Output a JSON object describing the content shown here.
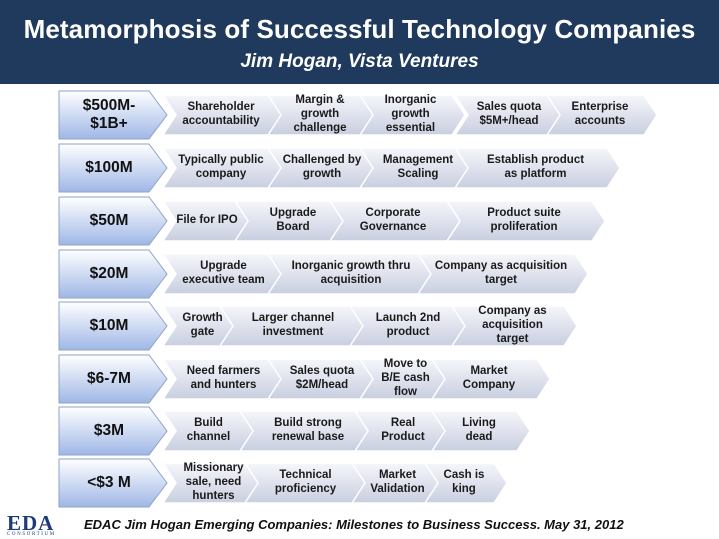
{
  "header": {
    "title": "Metamorphosis of Successful Technology Companies",
    "subtitle": "Jim Hogan, Vista Ventures"
  },
  "colors": {
    "header_bg": "#1f3a5c",
    "stage_gradient": [
      "#ffffff",
      "#9fb7e6"
    ],
    "chevron_gradient": [
      "#f6f7fb",
      "#c9cfe0"
    ]
  },
  "rows": [
    {
      "stage": "$500M-\n$1B+",
      "steps": [
        "Shareholder\naccountability",
        "Margin &\ngrowth\nchallenge",
        "Inorganic\ngrowth\nessential",
        "Sales quota\n$5M+/head",
        "Enterprise\naccounts"
      ]
    },
    {
      "stage": "$100M",
      "steps": [
        "Typically public\ncompany",
        "Challenged by\ngrowth",
        "Management\nScaling",
        "Establish product\nas platform"
      ]
    },
    {
      "stage": "$50M",
      "steps": [
        "File for IPO",
        "Upgrade\nBoard",
        "Corporate\nGovernance",
        "Product suite\nproliferation"
      ]
    },
    {
      "stage": "$20M",
      "steps": [
        "Upgrade\nexecutive team",
        "Inorganic growth thru\nacquisition",
        "Company as acquisition\ntarget"
      ]
    },
    {
      "stage": "$10M",
      "steps": [
        "Growth\ngate",
        "Larger channel\ninvestment",
        "Launch 2nd\nproduct",
        "Company as\nacquisition\ntarget"
      ]
    },
    {
      "stage": "$6-7M",
      "steps": [
        "Need farmers\nand hunters",
        "Sales quota\n$2M/head",
        "Move to\nB/E cash\nflow",
        "Market\nCompany"
      ]
    },
    {
      "stage": "$3M",
      "steps": [
        "Build\nchannel",
        "Build strong\nrenewal base",
        "Real\nProduct",
        "Living\ndead"
      ]
    },
    {
      "stage": "<$3 M",
      "steps": [
        "Missionary\nsale, need\nhunters",
        "Technical\nproficiency",
        "Market\nValidation",
        "Cash is\nking"
      ]
    }
  ],
  "footer": {
    "logo": "EDA",
    "logo_sub": "CONSORTIUM",
    "caption": "EDAC Jim Hogan Emerging Companies:  Milestones to Business Success. May 31, 2012"
  }
}
